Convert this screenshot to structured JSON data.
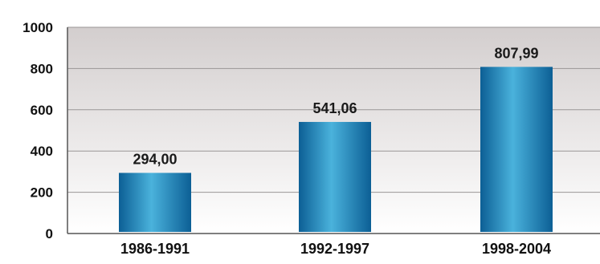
{
  "chart_data": {
    "type": "bar",
    "categories": [
      "1986-1991",
      "1992-1997",
      "1998-2004"
    ],
    "values": [
      294.0,
      541.06,
      807.99
    ],
    "data_labels": [
      "294,00",
      "541,06",
      "807,99"
    ],
    "title": "",
    "xlabel": "",
    "ylabel": "",
    "ylim": [
      0,
      1000
    ],
    "yticks": [
      0,
      200,
      400,
      600,
      800,
      1000
    ],
    "ytick_labels": [
      "0",
      "200",
      "400",
      "600",
      "800",
      "1000"
    ],
    "grid": true,
    "legend": "none",
    "colors": {
      "plot_background_top": "#d3cece",
      "plot_background_bottom": "#ffffff",
      "bar_dark": "#0c5f95",
      "bar_light": "#4ab2dc",
      "gridline": "#9a9696",
      "axis": "#555555"
    }
  }
}
